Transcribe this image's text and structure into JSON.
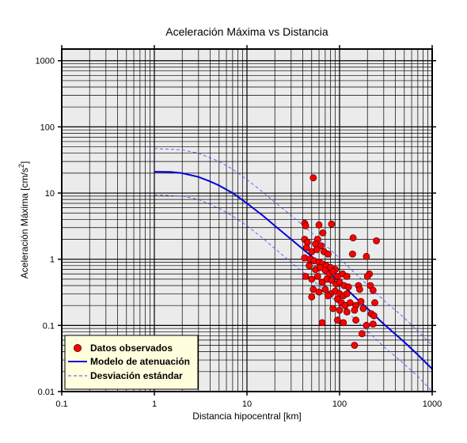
{
  "chart_data": {
    "type": "scatter",
    "title": "Aceleración Máxima vs Distancia",
    "xlabel": "Distancia hipocentral [km]",
    "ylabel_main": "Aceleración Máxima [cm/s",
    "ylabel_sup": "2",
    "ylabel_end": "]",
    "xscale": "log",
    "yscale": "log",
    "xlim": [
      0.1,
      1000
    ],
    "ylim": [
      0.01,
      1500
    ],
    "grid": true,
    "legend_position": "bottom-left",
    "colors": {
      "plot_bg": "#ebebeb",
      "grid": "#000000",
      "points": "#ff0000",
      "point_edge": "#550000",
      "model": "#0000dd",
      "std": "#4444ff",
      "legend_bg": "#ffffdd"
    },
    "x_ticks": [
      {
        "value": 0.1,
        "label": "0.1"
      },
      {
        "value": 1,
        "label": "1"
      },
      {
        "value": 10,
        "label": "10"
      },
      {
        "value": 100,
        "label": "100"
      },
      {
        "value": 1000,
        "label": "1000"
      }
    ],
    "y_ticks": [
      {
        "value": 0.01,
        "label": "0.01"
      },
      {
        "value": 0.1,
        "label": "0.1"
      },
      {
        "value": 1,
        "label": "1"
      },
      {
        "value": 10,
        "label": "10"
      },
      {
        "value": 100,
        "label": "100"
      },
      {
        "value": 1000,
        "label": "1000"
      }
    ],
    "series": [
      {
        "name": "Datos observados",
        "kind": "scatter",
        "points": [
          [
            52,
            17
          ],
          [
            42,
            3.5
          ],
          [
            43,
            3.2
          ],
          [
            60,
            3.3
          ],
          [
            82,
            3.4
          ],
          [
            66,
            2.5
          ],
          [
            42,
            2.0
          ],
          [
            45,
            1.8
          ],
          [
            58,
            2.0
          ],
          [
            55,
            1.7
          ],
          [
            63,
            1.6
          ],
          [
            140,
            2.1
          ],
          [
            250,
            1.9
          ],
          [
            44,
            1.5
          ],
          [
            50,
            1.3
          ],
          [
            57,
            1.4
          ],
          [
            68,
            1.3
          ],
          [
            75,
            1.2
          ],
          [
            138,
            1.2
          ],
          [
            195,
            1.1
          ],
          [
            42,
            1.05
          ],
          [
            48,
            1.0
          ],
          [
            53,
            0.95
          ],
          [
            60,
            0.9
          ],
          [
            65,
            0.85
          ],
          [
            72,
            0.8
          ],
          [
            80,
            0.75
          ],
          [
            90,
            0.7
          ],
          [
            47,
            0.8
          ],
          [
            55,
            0.7
          ],
          [
            62,
            0.75
          ],
          [
            70,
            0.68
          ],
          [
            78,
            0.6
          ],
          [
            85,
            0.65
          ],
          [
            95,
            0.55
          ],
          [
            108,
            0.6
          ],
          [
            120,
            0.55
          ],
          [
            210,
            0.6
          ],
          [
            43,
            0.55
          ],
          [
            50,
            0.5
          ],
          [
            58,
            0.55
          ],
          [
            65,
            0.45
          ],
          [
            73,
            0.5
          ],
          [
            82,
            0.48
          ],
          [
            92,
            0.42
          ],
          [
            100,
            0.45
          ],
          [
            112,
            0.4
          ],
          [
            125,
            0.38
          ],
          [
            160,
            0.4
          ],
          [
            200,
            0.55
          ],
          [
            215,
            0.4
          ],
          [
            52,
            0.35
          ],
          [
            60,
            0.32
          ],
          [
            70,
            0.35
          ],
          [
            80,
            0.3
          ],
          [
            90,
            0.33
          ],
          [
            100,
            0.3
          ],
          [
            110,
            0.28
          ],
          [
            120,
            0.3
          ],
          [
            165,
            0.35
          ],
          [
            230,
            0.34
          ],
          [
            50,
            0.27
          ],
          [
            75,
            0.28
          ],
          [
            95,
            0.25
          ],
          [
            105,
            0.22
          ],
          [
            115,
            0.2
          ],
          [
            130,
            0.22
          ],
          [
            150,
            0.2
          ],
          [
            170,
            0.23
          ],
          [
            240,
            0.22
          ],
          [
            85,
            0.18
          ],
          [
            100,
            0.17
          ],
          [
            120,
            0.16
          ],
          [
            145,
            0.17
          ],
          [
            180,
            0.18
          ],
          [
            220,
            0.15
          ],
          [
            235,
            0.14
          ],
          [
            95,
            0.12
          ],
          [
            110,
            0.11
          ],
          [
            65,
            0.11
          ],
          [
            150,
            0.12
          ],
          [
            195,
            0.1
          ],
          [
            230,
            0.105
          ],
          [
            175,
            0.075
          ],
          [
            145,
            0.05
          ]
        ]
      },
      {
        "name": "Modelo de atenuación",
        "kind": "line",
        "points": [
          [
            1,
            21
          ],
          [
            1.5,
            20.8
          ],
          [
            2,
            20
          ],
          [
            3,
            17.5
          ],
          [
            4,
            15
          ],
          [
            5,
            13
          ],
          [
            7,
            10
          ],
          [
            10,
            7
          ],
          [
            15,
            4.5
          ],
          [
            20,
            3.2
          ],
          [
            30,
            2.0
          ],
          [
            50,
            1.1
          ],
          [
            70,
            0.72
          ],
          [
            100,
            0.45
          ],
          [
            150,
            0.26
          ],
          [
            200,
            0.18
          ],
          [
            300,
            0.105
          ],
          [
            500,
            0.056
          ],
          [
            700,
            0.036
          ],
          [
            1000,
            0.022
          ]
        ]
      },
      {
        "name": "Desviación estándar",
        "kind": "dashed",
        "points": [
          [
            1,
            47
          ],
          [
            2,
            45
          ],
          [
            3,
            40
          ],
          [
            5,
            30
          ],
          [
            7,
            23
          ],
          [
            10,
            16
          ],
          [
            15,
            10.2
          ],
          [
            20,
            7.3
          ],
          [
            30,
            4.6
          ],
          [
            50,
            2.5
          ],
          [
            70,
            1.65
          ],
          [
            100,
            1.03
          ],
          [
            150,
            0.6
          ],
          [
            200,
            0.41
          ],
          [
            300,
            0.24
          ],
          [
            500,
            0.13
          ],
          [
            700,
            0.082
          ],
          [
            1000,
            0.05
          ]
        ]
      },
      {
        "kind": "dashed",
        "points": [
          [
            1,
            9.4
          ],
          [
            2,
            9.0
          ],
          [
            3,
            8.0
          ],
          [
            5,
            5.9
          ],
          [
            7,
            4.5
          ],
          [
            10,
            3.2
          ],
          [
            15,
            2.05
          ],
          [
            20,
            1.45
          ],
          [
            30,
            0.9
          ],
          [
            50,
            0.5
          ],
          [
            70,
            0.33
          ],
          [
            100,
            0.205
          ],
          [
            150,
            0.12
          ],
          [
            200,
            0.082
          ],
          [
            300,
            0.048
          ],
          [
            500,
            0.026
          ],
          [
            700,
            0.017
          ],
          [
            1000,
            0.01
          ]
        ]
      }
    ]
  }
}
